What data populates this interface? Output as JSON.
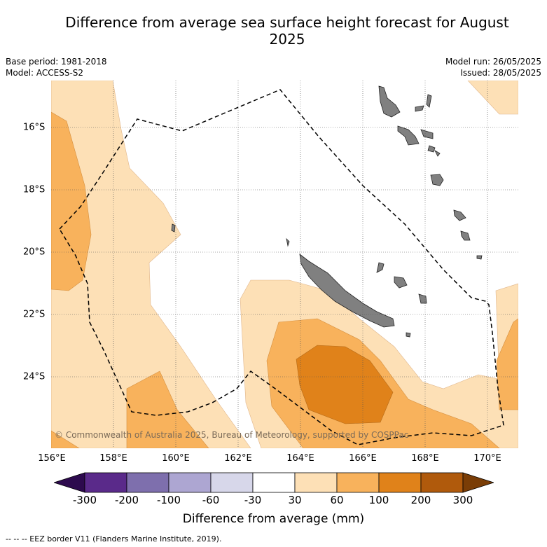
{
  "title": "Difference from average sea surface height forecast for August 2025",
  "meta": {
    "base_period": "Base period: 1981-2018",
    "model": "Model: ACCESS-S2",
    "model_run": "Model run: 26/05/2025",
    "issued": "Issued: 28/05/2025"
  },
  "map": {
    "region": "Southwest Pacific - New Caledonia and Vanuatu",
    "lon_ticks": [
      "156°E",
      "158°E",
      "160°E",
      "162°E",
      "164°E",
      "166°E",
      "168°E",
      "170°E"
    ],
    "lat_ticks": [
      "16°S",
      "18°S",
      "20°S",
      "22°S",
      "24°S"
    ],
    "land_color": "#808080",
    "credit": "© Commonwealth of Australia 2025, Bureau of Meteorology, supported by COSPPac"
  },
  "colorbar": {
    "title": "Difference from average (mm)",
    "tick_labels": [
      "-300",
      "-200",
      "-100",
      "-60",
      "-30",
      "30",
      "60",
      "100",
      "200",
      "300"
    ],
    "colors": [
      "#2d0a4e",
      "#5a2a8a",
      "#7e6fad",
      "#ada6d2",
      "#d7d7ea",
      "#ffffff",
      "#fde0b6",
      "#f8b25c",
      "#e0821a",
      "#b05a0c",
      "#7a3d06"
    ]
  },
  "footer": "-- -- -- EEZ border V11 (Flanders Marine Institute, 2019)."
}
